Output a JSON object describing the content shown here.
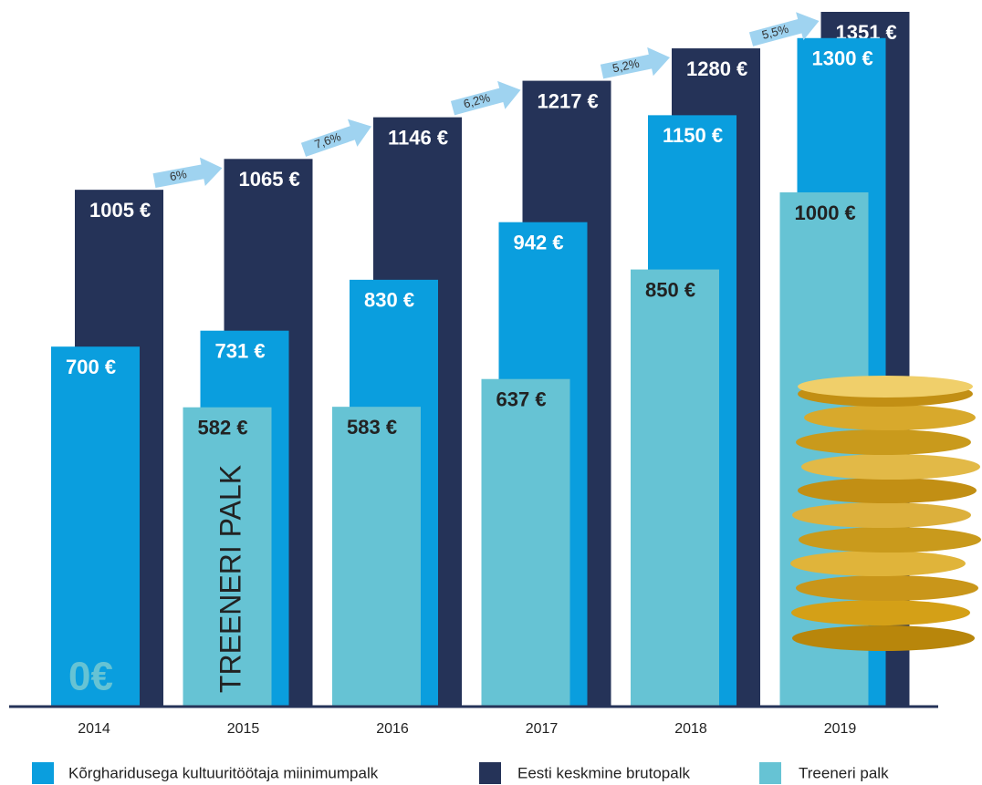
{
  "chart_data": {
    "type": "bar",
    "categories": [
      "2014",
      "2015",
      "2016",
      "2017",
      "2018",
      "2019"
    ],
    "series": [
      {
        "name": "Treeneri palk",
        "color": "#66c3d4",
        "values": [
          0,
          582,
          583,
          637,
          850,
          1000
        ],
        "value_labels": [
          "0€",
          "582 €",
          "583 €",
          "637 €",
          "850 €",
          "1000 €"
        ]
      },
      {
        "name": "Kõrgharidusega kultuuritöötaja miinimumpalk",
        "color": "#0a9ede",
        "values": [
          700,
          731,
          830,
          942,
          1150,
          1300
        ],
        "value_labels": [
          "700 €",
          "731 €",
          "830 €",
          "942 €",
          "1150 €",
          "1300 €"
        ]
      },
      {
        "name": "Eesti keskmine brutopalk",
        "color": "#253358",
        "values": [
          1005,
          1065,
          1146,
          1217,
          1280,
          1351
        ],
        "value_labels": [
          "1005 €",
          "1065 €",
          "1146 €",
          "1217 €",
          "1280 €",
          "1351 €"
        ]
      }
    ],
    "growth_labels": [
      "6%",
      "7,6%",
      "6,2%",
      "5,2%",
      "5,5%"
    ],
    "vertical_label": "TREENERI PALK"
  }
}
